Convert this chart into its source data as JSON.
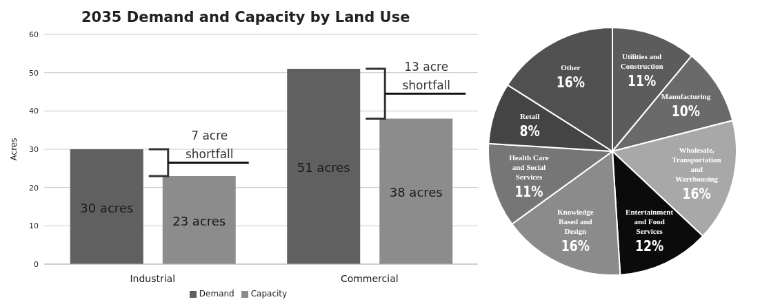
{
  "chart_data": [
    {
      "type": "bar",
      "title": "2035 Demand and Capacity by Land Use",
      "ylabel": "Acres",
      "categories": [
        "Industrial",
        "Commercial"
      ],
      "series": [
        {
          "name": "Demand",
          "color": "#606060",
          "values": [
            30,
            51
          ],
          "value_labels": [
            "30 acres",
            "51 acres"
          ]
        },
        {
          "name": "Capacity",
          "color": "#8c8c8c",
          "values": [
            23,
            38
          ],
          "value_labels": [
            "23 acres",
            "38 acres"
          ]
        }
      ],
      "ylim": [
        0,
        60
      ],
      "yticks": [
        0,
        10,
        20,
        30,
        40,
        50,
        60
      ],
      "grid": "y",
      "legend": "bottom",
      "annotations": [
        "7 acre shortfall",
        "13 acre shortfall"
      ]
    },
    {
      "type": "pie",
      "categories": [
        "Utilities and Construction",
        "Manufacturing",
        "Wholesale, Transportation and Warehousing",
        "Entertainment and Food Services",
        "Knowledge Based and Design",
        "Health Care and Social Services",
        "Retail",
        "Other"
      ],
      "values": [
        11,
        10,
        16,
        12,
        16,
        11,
        8,
        16
      ],
      "value_labels": [
        "11%",
        "10%",
        "16%",
        "12%",
        "16%",
        "11%",
        "8%",
        "16%"
      ],
      "colors": [
        "#5c5c5c",
        "#6a6a6a",
        "#a8a8a8",
        "#0b0b0b",
        "#8b8b8b",
        "#767676",
        "#444444",
        "#505050"
      ]
    }
  ]
}
